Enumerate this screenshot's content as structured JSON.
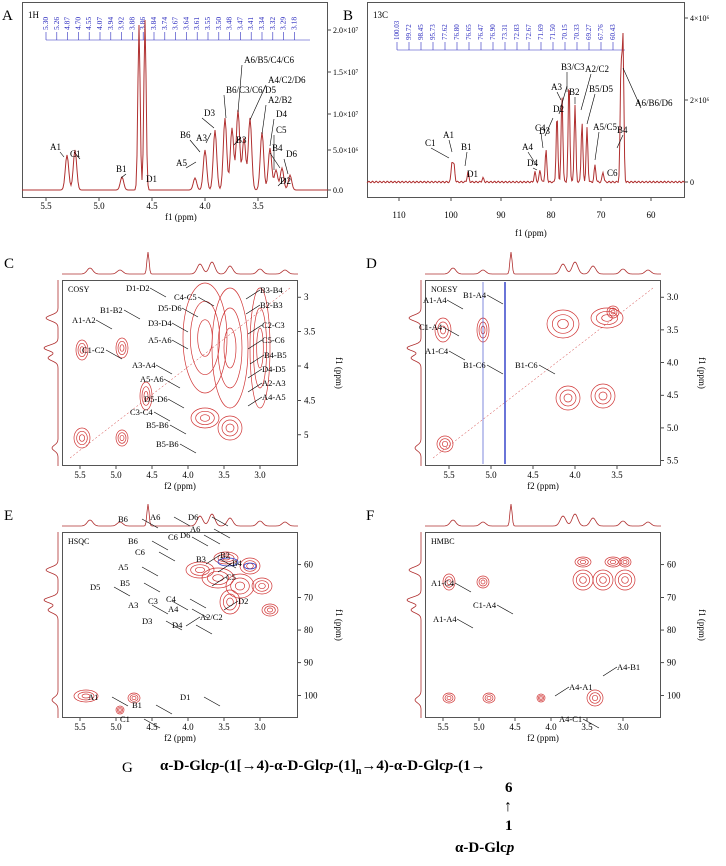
{
  "colors": {
    "spectrum": "#b03030",
    "contour": "#d03434",
    "neg_contour": "#2a3ac8",
    "peak_list": "#2b2bbf"
  },
  "panels": {
    "A": {
      "letter": "A",
      "nucleus": "1H",
      "xlabel": "f1 (ppm)",
      "peak_list": [
        "5.30",
        "5.26",
        "4.87",
        "4.70",
        "4.55",
        "4.07",
        "3.94",
        "3.92",
        "3.88",
        "3.86",
        "3.84",
        "3.74",
        "3.67",
        "3.64",
        "3.61",
        "3.55",
        "3.50",
        "3.48",
        "3.47",
        "3.41",
        "3.34",
        "3.32",
        "3.29",
        "3.18"
      ],
      "xticks": [
        "5.5",
        "5.0",
        "4.5",
        "4.0",
        "3.5"
      ],
      "yticks": [
        "2.0×10⁷",
        "1.5×10⁷",
        "1.0×10⁷",
        "5.0×10⁶",
        "0.0"
      ],
      "labels": [
        "A1",
        "C1",
        "B1",
        "D1",
        "A5",
        "B6",
        "A3",
        "D3",
        "B6/C3/C6/D5",
        "A6/B5/C4/C6",
        "B3",
        "A4/C2/D6",
        "A2/B2",
        "D4",
        "C5",
        "B4",
        "D6",
        "D2"
      ]
    },
    "B": {
      "letter": "B",
      "nucleus": "13C",
      "xlabel": "f1 (ppm)",
      "peak_list": [
        "100.03",
        "99.72",
        "98.45",
        "95.73",
        "77.62",
        "76.80",
        "76.65",
        "76.47",
        "76.90",
        "73.31",
        "72.83",
        "72.67",
        "71.69",
        "71.50",
        "70.15",
        "70.33",
        "69.27",
        "67.76",
        "60.43"
      ],
      "xticks": [
        "110",
        "100",
        "90",
        "80",
        "70",
        "60"
      ],
      "yticks": [
        "4×10⁶",
        "2×10⁶",
        "0"
      ],
      "labels": [
        "C1",
        "A1",
        "B1",
        "D1",
        "A4",
        "D4",
        "C4",
        "D3",
        "A3",
        "D2",
        "B3/C3",
        "B2",
        "A2/C2",
        "B5/D5",
        "A5/C5",
        "C6",
        "B4",
        "A6/B6/D6"
      ]
    },
    "C": {
      "letter": "C",
      "title": "COSY",
      "xlabel": "f2 (ppm)",
      "ylabel": "f1 (ppm)",
      "xticks": [
        "5.5",
        "5.0",
        "4.5",
        "4.0",
        "3.5",
        "3.0"
      ],
      "yticks": [
        "3",
        "3.5",
        "4",
        "4.5",
        "5"
      ],
      "labels": [
        "A1-A2",
        "B1-B2",
        "C1-C2",
        "D1-D2",
        "C4-C5",
        "D5-D6",
        "D3-D4",
        "A5-A6",
        "A3-A4",
        "A5-A6",
        "D5-D6",
        "C3-C4",
        "B5-B6",
        "B5-B6",
        "B3-B4",
        "B2-B3",
        "C2-C3",
        "C5-C6",
        "B4-B5",
        "D4-D5",
        "A2-A3",
        "A4-A5"
      ]
    },
    "D": {
      "letter": "D",
      "title": "NOESY",
      "xlabel": "f2 (ppm)",
      "ylabel": "f1 (ppm)",
      "xticks": [
        "5.5",
        "5.0",
        "4.5",
        "4.0",
        "3.5"
      ],
      "yticks": [
        "3.0",
        "3.5",
        "4.0",
        "4.5",
        "5.0",
        "5.5"
      ],
      "labels": [
        "A1-A4",
        "B1-A4",
        "C1-A4",
        "A1-C4",
        "B1-C6",
        "B1-C6"
      ]
    },
    "E": {
      "letter": "E",
      "title": "HSQC",
      "xlabel": "f2 (ppm)",
      "ylabel": "f1 (ppm)",
      "xticks": [
        "5.5",
        "5.0",
        "4.5",
        "4.0",
        "3.5",
        "3.0"
      ],
      "yticks": [
        "60",
        "70",
        "80",
        "90",
        "100"
      ],
      "labels": [
        "B6",
        "A6",
        "D6",
        "A6",
        "D6",
        "B6",
        "C6",
        "C6",
        "B3",
        "B2",
        "B4",
        "A5",
        "C5",
        "D5",
        "B5",
        "A3",
        "C3",
        "C4",
        "A4",
        "D3",
        "D4",
        "A2/C2",
        "D2",
        "A1",
        "B1",
        "D1",
        "C1"
      ]
    },
    "F": {
      "letter": "F",
      "title": "HMBC",
      "xlabel": "f2 (ppm)",
      "ylabel": "f1 (ppm)",
      "xticks": [
        "5.5",
        "5.0",
        "4.5",
        "4.0",
        "3.5",
        "3.0"
      ],
      "yticks": [
        "60",
        "70",
        "80",
        "90",
        "100"
      ],
      "labels": [
        "A1-C4",
        "C1-A4",
        "A1-A4",
        "A4-A1",
        "A4-B1",
        "A4-C1"
      ]
    }
  },
  "scheme": {
    "letter": "G",
    "main_prefix": "α-D-Glc",
    "p1": "p",
    "main_mid": "-(1[→4)-α-D-Glc",
    "p2": "p",
    "main_mid2": "-(1]",
    "subscript": "n",
    "main_mid3": "→4)-α-D-Glc",
    "p3": "p",
    "main_end": "-(1→",
    "branch_pos": "6",
    "arrow": "↑",
    "branch_one": "1",
    "branch_sugar": "α-D-Glc",
    "branch_p": "p"
  }
}
